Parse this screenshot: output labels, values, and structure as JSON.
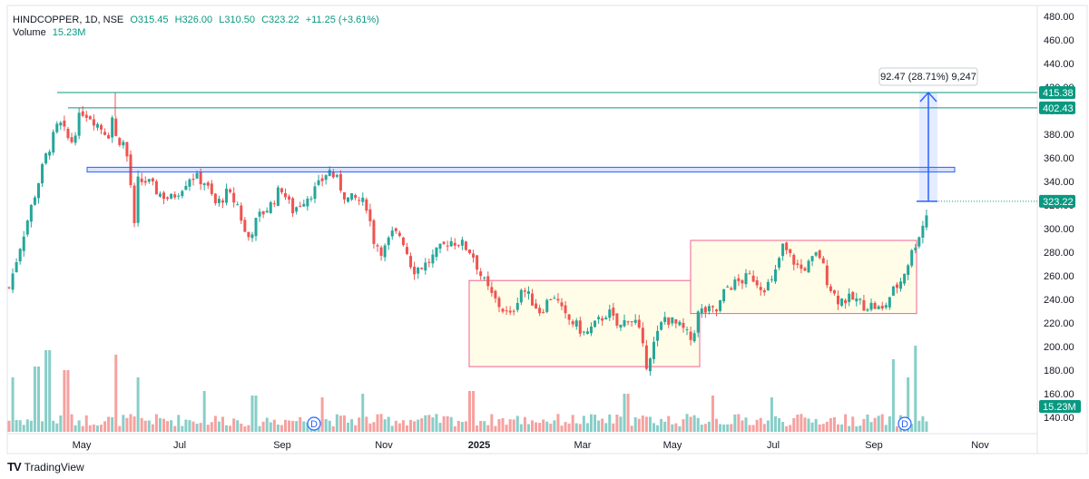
{
  "header": {
    "symbol": "HINDCOPPER, 1D, NSE",
    "open": "O315.45",
    "high": "H326.00",
    "low": "L310.50",
    "close": "C323.22",
    "change": "+11.25 (+3.61%)",
    "volume_label": "Volume",
    "volume_value": "15.23M"
  },
  "footer": {
    "logo": "TV",
    "brand": "TradingView"
  },
  "colors": {
    "up": "#26a69a",
    "down": "#ef5350",
    "accent": "#089981",
    "box_fill": "#fffde7",
    "box_stroke": "#f06292",
    "zone": "#2962ff"
  },
  "chart_data": {
    "type": "candlestick",
    "ylim": [
      130,
      485
    ],
    "y_ticks": [
      "480.00",
      "460.00",
      "440.00",
      "420.00",
      "400.00",
      "380.00",
      "360.00",
      "340.00",
      "320.00",
      "300.00",
      "280.00",
      "260.00",
      "240.00",
      "220.00",
      "200.00",
      "180.00",
      "160.00",
      "140.00"
    ],
    "x_ticks": [
      "May",
      "Jul",
      "Sep",
      "Nov",
      "2025",
      "Mar",
      "May",
      "Jul",
      "Sep",
      "Nov"
    ],
    "price_tags": [
      {
        "label": "415.38",
        "value": 415.38
      },
      {
        "label": "402.43",
        "value": 402.43
      },
      {
        "label": "323.22",
        "value": 323.22
      }
    ],
    "volume_tag": "15.23M",
    "measure_label": "92.47 (28.71%) 9,247",
    "dividend_marker": "D",
    "horizontal_lines": [
      415.38,
      402.43
    ],
    "resistance_zone": [
      348,
      352
    ],
    "consolidation_boxes": [
      {
        "top": 256,
        "bottom": 183
      },
      {
        "top": 290,
        "bottom": 228
      }
    ],
    "close_path": [
      [
        0,
        250
      ],
      [
        12,
        285
      ],
      [
        25,
        320
      ],
      [
        40,
        360
      ],
      [
        55,
        390
      ],
      [
        68,
        372
      ],
      [
        80,
        400
      ],
      [
        90,
        395
      ],
      [
        102,
        385
      ],
      [
        110,
        380
      ],
      [
        115,
        400
      ],
      [
        118,
        375
      ],
      [
        125,
        375
      ],
      [
        132,
        355
      ],
      [
        138,
        300
      ],
      [
        140,
        340
      ],
      [
        152,
        340
      ],
      [
        165,
        330
      ],
      [
        178,
        325
      ],
      [
        190,
        335
      ],
      [
        200,
        345
      ],
      [
        215,
        340
      ],
      [
        228,
        320
      ],
      [
        240,
        330
      ],
      [
        252,
        320
      ],
      [
        262,
        290
      ],
      [
        275,
        310
      ],
      [
        288,
        320
      ],
      [
        300,
        335
      ],
      [
        312,
        315
      ],
      [
        325,
        325
      ],
      [
        340,
        335
      ],
      [
        352,
        350
      ],
      [
        362,
        340
      ],
      [
        372,
        325
      ],
      [
        382,
        325
      ],
      [
        394,
        320
      ],
      [
        402,
        290
      ],
      [
        412,
        280
      ],
      [
        422,
        295
      ],
      [
        432,
        295
      ],
      [
        445,
        265
      ],
      [
        460,
        270
      ],
      [
        472,
        280
      ],
      [
        485,
        290
      ],
      [
        497,
        288
      ],
      [
        510,
        280
      ],
      [
        520,
        260
      ],
      [
        530,
        245
      ],
      [
        540,
        235
      ],
      [
        552,
        225
      ],
      [
        565,
        250
      ],
      [
        575,
        240
      ],
      [
        585,
        230
      ],
      [
        600,
        245
      ],
      [
        612,
        225
      ],
      [
        622,
        220
      ],
      [
        635,
        210
      ],
      [
        648,
        220
      ],
      [
        660,
        230
      ],
      [
        672,
        215
      ],
      [
        682,
        225
      ],
      [
        692,
        220
      ],
      [
        702,
        185
      ],
      [
        712,
        205
      ],
      [
        722,
        225
      ],
      [
        732,
        220
      ],
      [
        742,
        215
      ],
      [
        752,
        205
      ],
      [
        760,
        230
      ],
      [
        770,
        230
      ],
      [
        780,
        230
      ],
      [
        790,
        250
      ],
      [
        805,
        255
      ],
      [
        818,
        260
      ],
      [
        830,
        250
      ],
      [
        842,
        255
      ],
      [
        852,
        285
      ],
      [
        862,
        275
      ],
      [
        872,
        265
      ],
      [
        882,
        270
      ],
      [
        892,
        280
      ],
      [
        902,
        255
      ],
      [
        912,
        240
      ],
      [
        922,
        240
      ],
      [
        932,
        240
      ],
      [
        942,
        235
      ],
      [
        952,
        235
      ],
      [
        962,
        230
      ],
      [
        972,
        245
      ],
      [
        982,
        255
      ],
      [
        990,
        270
      ],
      [
        1000,
        290
      ],
      [
        1008,
        305
      ],
      [
        1015,
        323
      ]
    ],
    "volume_spikes": [
      {
        "x": 13,
        "v": 60
      },
      {
        "x": 40,
        "v": 72
      },
      {
        "x": 53,
        "v": 90
      },
      {
        "x": 73,
        "v": 68
      },
      {
        "x": 128,
        "v": 85
      },
      {
        "x": 152,
        "v": 60
      },
      {
        "x": 225,
        "v": 45
      },
      {
        "x": 280,
        "v": 40
      },
      {
        "x": 354,
        "v": 38
      },
      {
        "x": 400,
        "v": 42
      },
      {
        "x": 520,
        "v": 45
      },
      {
        "x": 690,
        "v": 42
      },
      {
        "x": 785,
        "v": 40
      },
      {
        "x": 850,
        "v": 38
      },
      {
        "x": 985,
        "v": 80
      },
      {
        "x": 1000,
        "v": 60
      },
      {
        "x": 1008,
        "v": 95
      }
    ]
  }
}
